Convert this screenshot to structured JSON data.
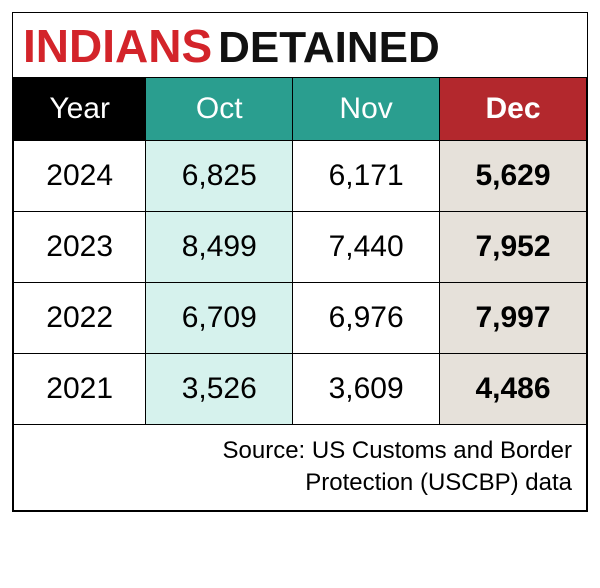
{
  "title": {
    "word1": "INDIANS",
    "word2": "DETAINED"
  },
  "style": {
    "title_word1_color": "#d3242a",
    "title_word2_color": "#111111",
    "title_fontsize_pt": 46,
    "header_bg": "#000000",
    "header_fg": "#ffffff",
    "header_highlight_months_bg": "#2a9e8f",
    "header_dec_bg": "#b3282d",
    "col_oct_body_bg": "#d6f2ed",
    "col_nov_body_bg": "#ffffff",
    "col_dec_body_bg": "#e6e1da",
    "border_color": "#000000",
    "cell_fontsize_pt": 30,
    "source_fontsize_pt": 24
  },
  "columns": [
    "Year",
    "Oct",
    "Nov",
    "Dec"
  ],
  "rows": [
    {
      "year": "2024",
      "oct": "6,825",
      "nov": "6,171",
      "dec": "5,629"
    },
    {
      "year": "2023",
      "oct": "8,499",
      "nov": "7,440",
      "dec": "7,952"
    },
    {
      "year": "2022",
      "oct": "6,709",
      "nov": "6,976",
      "dec": "7,997"
    },
    {
      "year": "2021",
      "oct": "3,526",
      "nov": "3,609",
      "dec": "4,486"
    }
  ],
  "source": {
    "line1": "Source: US Customs and Border",
    "line2": "Protection (USCBP) data"
  }
}
